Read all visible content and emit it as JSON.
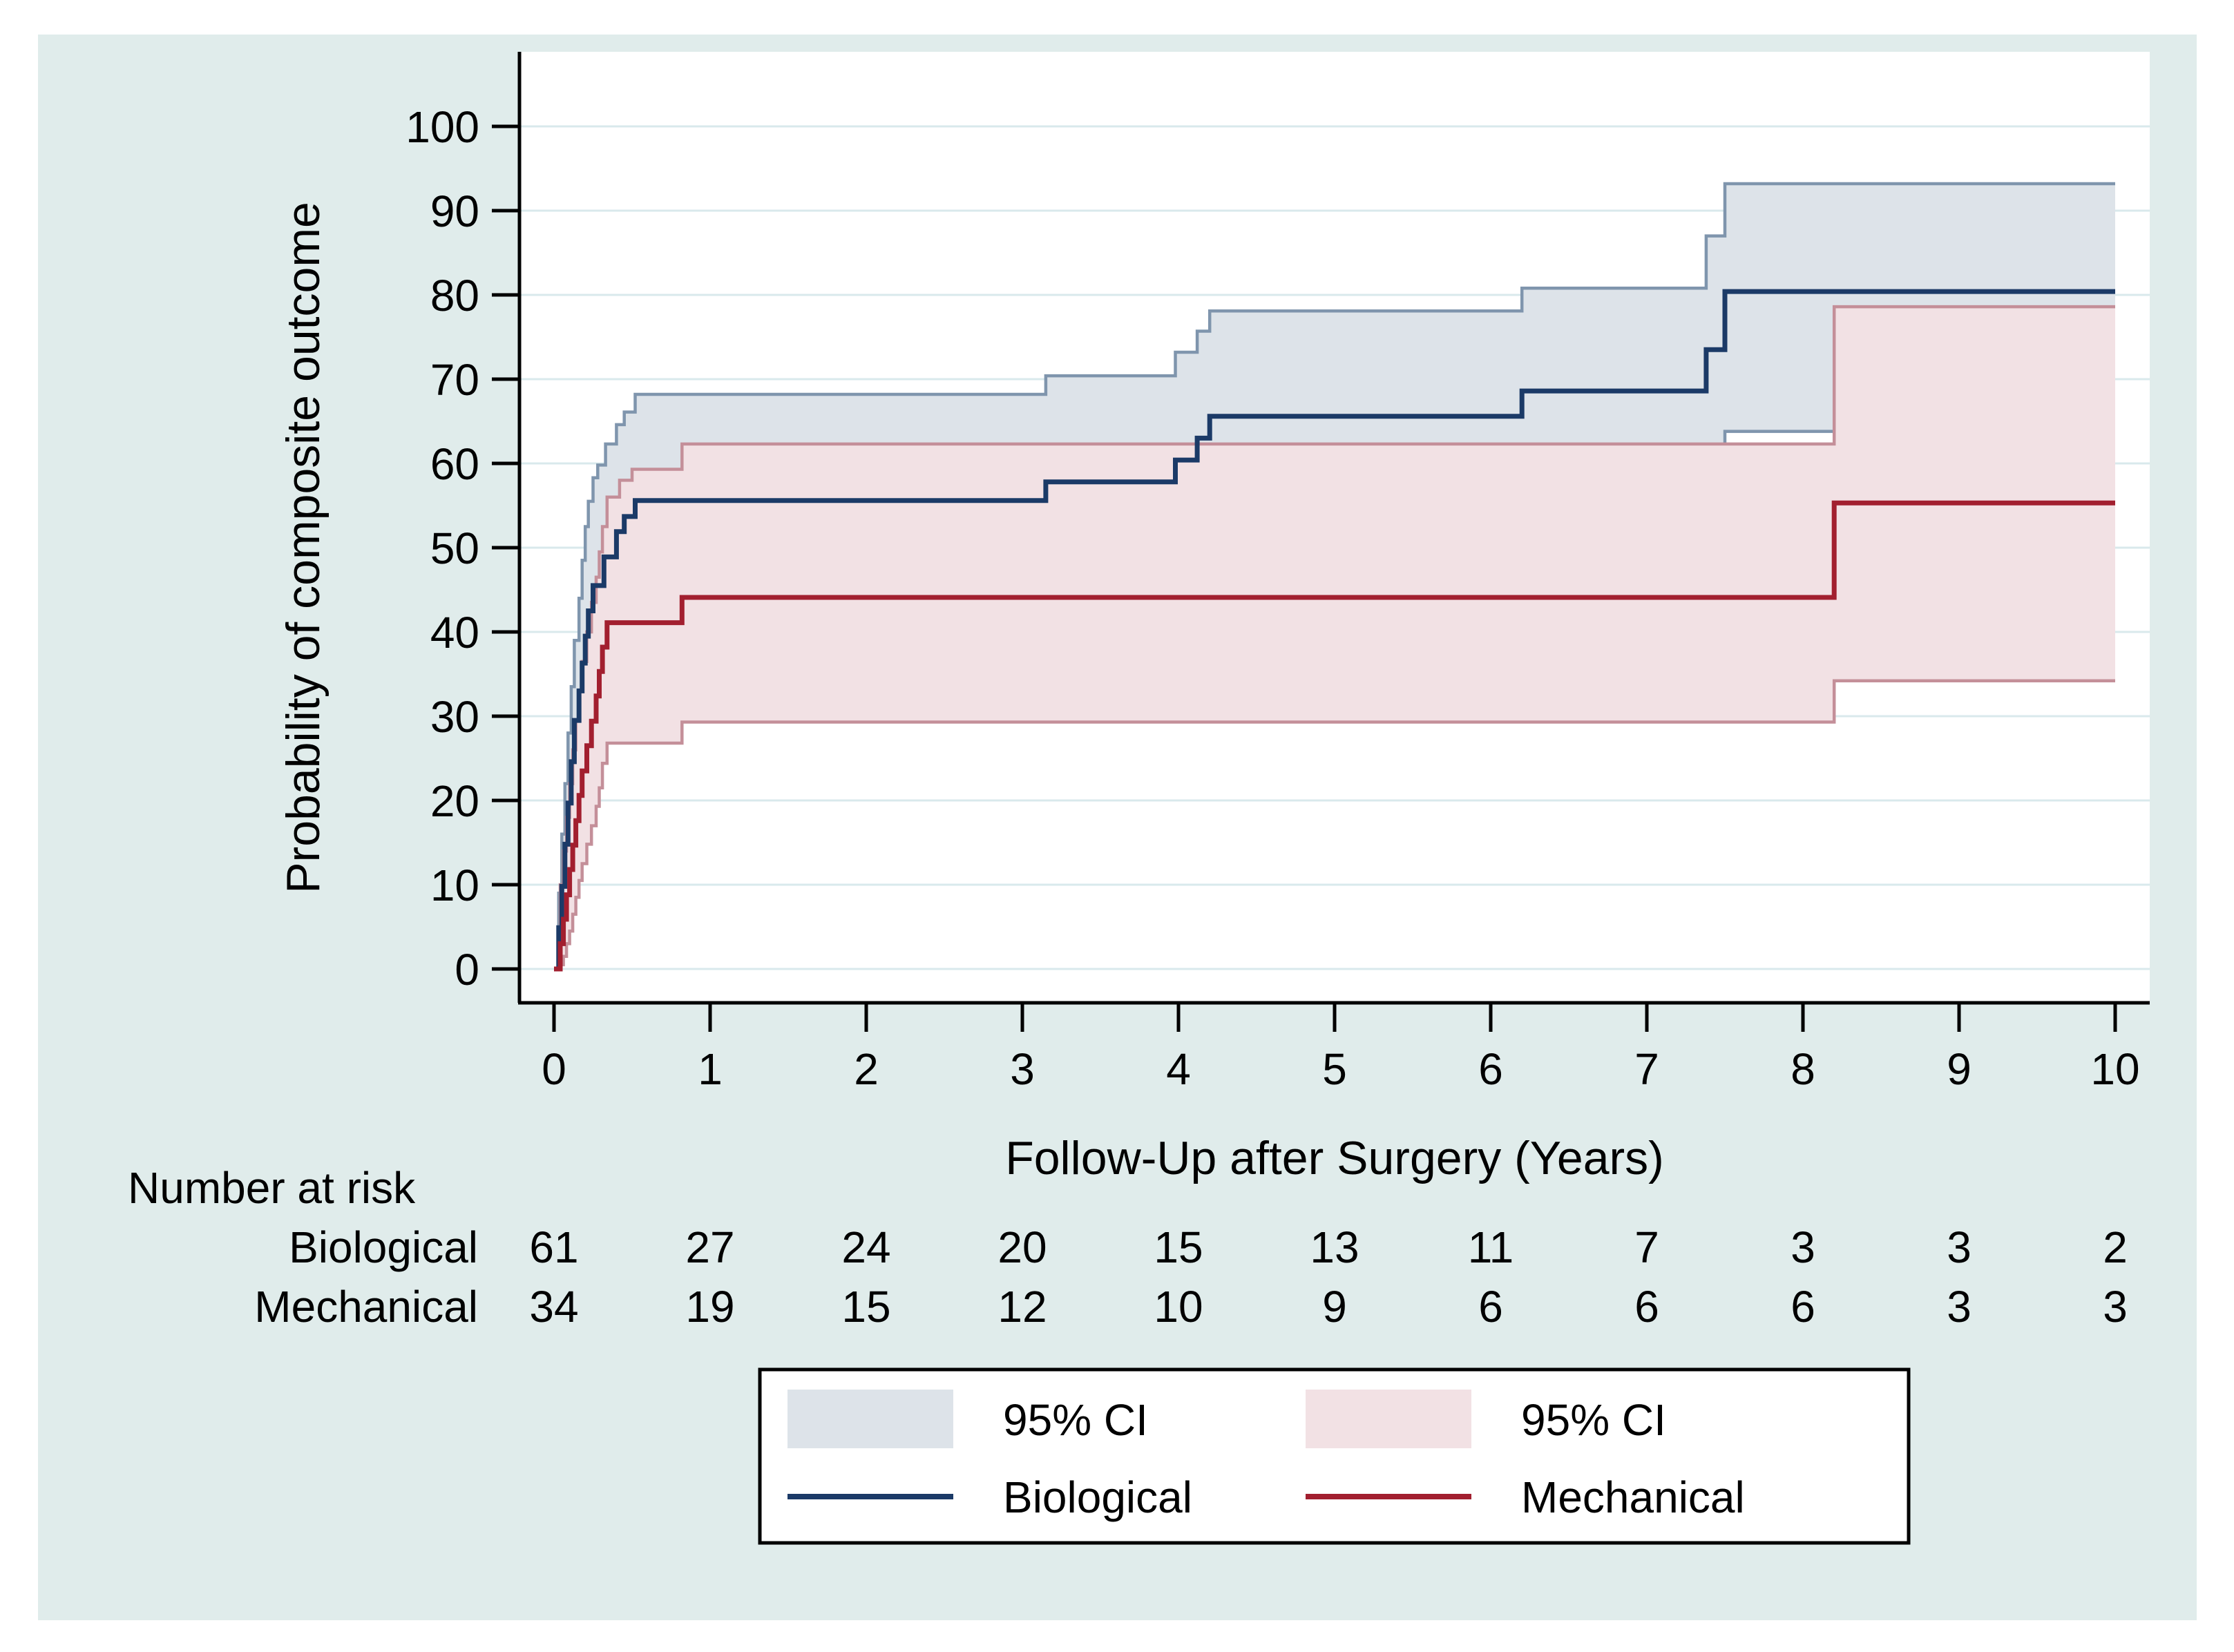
{
  "colors": {
    "panel_bg": "#e0eceb",
    "plot_bg": "#ffffff",
    "gridline": "#d9e9ec",
    "axis": "#000000",
    "biological_line": "#1b3a67",
    "biological_ci_fill": "#dde3e9",
    "biological_ci_edge": "#7f95ad",
    "mechanical_line": "#a21f2f",
    "mechanical_ci_fill": "#f2e1e4",
    "mechanical_ci_edge": "#c48f99",
    "legend_box_border": "#000000",
    "legend_box_fill": "#ffffff"
  },
  "y_axis": {
    "title": "Probability of composite outcome",
    "range": [
      0,
      100
    ],
    "ticks": [
      0,
      10,
      20,
      30,
      40,
      50,
      60,
      70,
      80,
      90,
      100
    ]
  },
  "x_axis": {
    "title": "Follow-Up after Surgery (Years)",
    "range": [
      0,
      10
    ],
    "ticks": [
      0,
      1,
      2,
      3,
      4,
      5,
      6,
      7,
      8,
      9,
      10
    ]
  },
  "at_risk": {
    "header": "Number at risk",
    "rows": [
      {
        "label": "Biological",
        "counts": [
          61,
          27,
          24,
          20,
          15,
          13,
          11,
          7,
          3,
          3,
          2
        ]
      },
      {
        "label": "Mechanical",
        "counts": [
          34,
          19,
          15,
          12,
          10,
          9,
          6,
          6,
          6,
          3,
          3
        ]
      }
    ]
  },
  "legend": {
    "entries": [
      {
        "label": "95% CI",
        "type": "fill",
        "color_key": "biological_ci_fill"
      },
      {
        "label": "95% CI",
        "type": "fill",
        "color_key": "mechanical_ci_fill"
      },
      {
        "label": "Biological",
        "type": "line",
        "color_key": "biological_line"
      },
      {
        "label": "Mechanical",
        "type": "line",
        "color_key": "mechanical_line"
      }
    ]
  },
  "chart_data": {
    "type": "line",
    "subtype": "kaplan-meier-step-with-ci",
    "title": "",
    "xlabel": "Follow-Up after Surgery (Years)",
    "ylabel": "Probability of composite outcome",
    "xlim": [
      0,
      10
    ],
    "ylim": [
      0,
      100
    ],
    "grid": "horizontal",
    "legend_position": "bottom-center",
    "series": [
      {
        "name": "Biological",
        "role": "estimate",
        "steps": [
          [
            0,
            0
          ],
          [
            0.03,
            4.9
          ],
          [
            0.05,
            9.8
          ],
          [
            0.07,
            14.8
          ],
          [
            0.09,
            19.7
          ],
          [
            0.11,
            24.6
          ],
          [
            0.13,
            29.5
          ],
          [
            0.16,
            33.0
          ],
          [
            0.18,
            36.3
          ],
          [
            0.2,
            39.5
          ],
          [
            0.22,
            42.5
          ],
          [
            0.25,
            45.5
          ],
          [
            0.32,
            48.9
          ],
          [
            0.4,
            51.9
          ],
          [
            0.45,
            53.7
          ],
          [
            0.52,
            55.6
          ],
          [
            3.15,
            57.8
          ],
          [
            3.98,
            60.4
          ],
          [
            4.12,
            63.0
          ],
          [
            4.2,
            65.6
          ],
          [
            6.2,
            68.6
          ],
          [
            7.38,
            73.5
          ],
          [
            7.5,
            80.4
          ],
          [
            10,
            80.4
          ]
        ]
      },
      {
        "name": "Biological 95% CI upper",
        "role": "ci-upper",
        "steps": [
          [
            0,
            0
          ],
          [
            0.03,
            9
          ],
          [
            0.05,
            16
          ],
          [
            0.07,
            22
          ],
          [
            0.09,
            28
          ],
          [
            0.11,
            33.5
          ],
          [
            0.13,
            39
          ],
          [
            0.16,
            44
          ],
          [
            0.18,
            48.5
          ],
          [
            0.2,
            52.5
          ],
          [
            0.22,
            55.5
          ],
          [
            0.25,
            58.3
          ],
          [
            0.28,
            59.8
          ],
          [
            0.33,
            62.3
          ],
          [
            0.4,
            64.6
          ],
          [
            0.45,
            66.1
          ],
          [
            0.52,
            68.2
          ],
          [
            3.15,
            70.4
          ],
          [
            3.98,
            73.2
          ],
          [
            4.12,
            75.7
          ],
          [
            4.2,
            78.1
          ],
          [
            6.2,
            80.8
          ],
          [
            7.38,
            87.0
          ],
          [
            7.5,
            93.2
          ],
          [
            10,
            93.2
          ]
        ]
      },
      {
        "name": "Biological 95% CI lower",
        "role": "ci-lower",
        "steps": [
          [
            0,
            0
          ],
          [
            0.03,
            1.5
          ],
          [
            0.05,
            4
          ],
          [
            0.07,
            7
          ],
          [
            0.09,
            10.5
          ],
          [
            0.11,
            14
          ],
          [
            0.13,
            17.5
          ],
          [
            0.16,
            21
          ],
          [
            0.18,
            24.5
          ],
          [
            0.2,
            27.5
          ],
          [
            0.22,
            30.5
          ],
          [
            0.25,
            33.5
          ],
          [
            0.32,
            36.5
          ],
          [
            0.4,
            39.5
          ],
          [
            0.45,
            41.0
          ],
          [
            0.52,
            42.7
          ],
          [
            3.15,
            44.8
          ],
          [
            3.98,
            47.3
          ],
          [
            4.12,
            49.8
          ],
          [
            4.2,
            52.2
          ],
          [
            6.2,
            54.8
          ],
          [
            7.38,
            58.2
          ],
          [
            7.5,
            63.8
          ],
          [
            10,
            63.8
          ]
        ]
      },
      {
        "name": "Mechanical",
        "role": "estimate",
        "steps": [
          [
            0,
            0
          ],
          [
            0.04,
            3.0
          ],
          [
            0.06,
            5.9
          ],
          [
            0.08,
            8.8
          ],
          [
            0.1,
            11.8
          ],
          [
            0.12,
            14.7
          ],
          [
            0.14,
            17.6
          ],
          [
            0.16,
            20.6
          ],
          [
            0.18,
            23.5
          ],
          [
            0.21,
            26.5
          ],
          [
            0.24,
            29.4
          ],
          [
            0.27,
            32.4
          ],
          [
            0.29,
            35.3
          ],
          [
            0.31,
            38.2
          ],
          [
            0.34,
            41.1
          ],
          [
            0.82,
            44.1
          ],
          [
            8.2,
            55.3
          ],
          [
            10,
            55.3
          ]
        ]
      },
      {
        "name": "Mechanical 95% CI upper",
        "role": "ci-upper",
        "steps": [
          [
            0,
            0
          ],
          [
            0.04,
            10
          ],
          [
            0.06,
            14
          ],
          [
            0.08,
            18
          ],
          [
            0.1,
            22
          ],
          [
            0.12,
            26
          ],
          [
            0.14,
            29.5
          ],
          [
            0.16,
            33
          ],
          [
            0.18,
            36.5
          ],
          [
            0.21,
            40
          ],
          [
            0.24,
            43.5
          ],
          [
            0.27,
            46.5
          ],
          [
            0.29,
            49.5
          ],
          [
            0.31,
            52.5
          ],
          [
            0.34,
            56.0
          ],
          [
            0.42,
            58.0
          ],
          [
            0.5,
            59.3
          ],
          [
            0.82,
            62.3
          ],
          [
            8.2,
            78.6
          ],
          [
            10,
            78.6
          ]
        ]
      },
      {
        "name": "Mechanical 95% CI lower",
        "role": "ci-lower",
        "steps": [
          [
            0,
            0
          ],
          [
            0.04,
            0.5
          ],
          [
            0.06,
            1.5
          ],
          [
            0.08,
            3
          ],
          [
            0.1,
            4.5
          ],
          [
            0.12,
            6.5
          ],
          [
            0.14,
            8.5
          ],
          [
            0.16,
            10.5
          ],
          [
            0.18,
            12.5
          ],
          [
            0.21,
            14.8
          ],
          [
            0.24,
            17.0
          ],
          [
            0.27,
            19.3
          ],
          [
            0.29,
            21.5
          ],
          [
            0.31,
            24.4
          ],
          [
            0.34,
            26.8
          ],
          [
            0.82,
            29.3
          ],
          [
            8.2,
            34.2
          ],
          [
            10,
            34.2
          ]
        ]
      }
    ]
  }
}
